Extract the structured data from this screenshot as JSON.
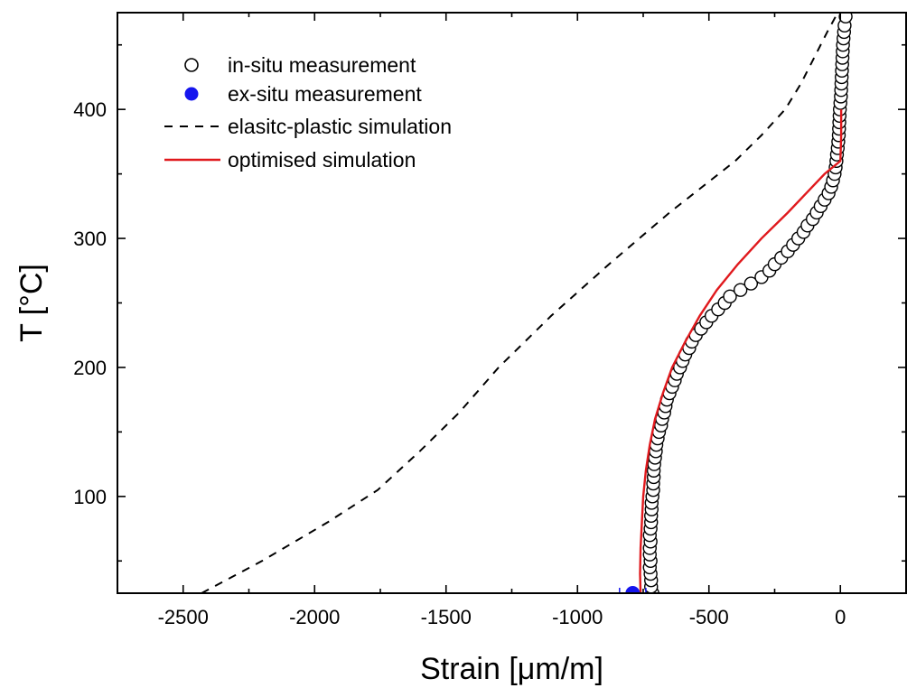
{
  "chart_data": {
    "type": "line",
    "title": "",
    "xlabel": "Strain [μm/m]",
    "ylabel": "T [°C]",
    "xlim": [
      -2750,
      250
    ],
    "ylim": [
      25,
      475
    ],
    "x_ticks": [
      -2500,
      -2000,
      -1500,
      -1000,
      -500,
      0
    ],
    "y_ticks": [
      100,
      200,
      300,
      400
    ],
    "grid": false,
    "legend_position": "top-left",
    "series": [
      {
        "name": "in-situ measurement",
        "style": "open-circle",
        "color": "#000000",
        "points": [
          [
            -715,
            25
          ],
          [
            -720,
            30
          ],
          [
            -720,
            35
          ],
          [
            -722,
            40
          ],
          [
            -725,
            45
          ],
          [
            -722,
            50
          ],
          [
            -725,
            55
          ],
          [
            -725,
            60
          ],
          [
            -722,
            65
          ],
          [
            -725,
            70
          ],
          [
            -722,
            75
          ],
          [
            -720,
            80
          ],
          [
            -720,
            85
          ],
          [
            -718,
            90
          ],
          [
            -718,
            95
          ],
          [
            -715,
            100
          ],
          [
            -712,
            105
          ],
          [
            -712,
            110
          ],
          [
            -710,
            115
          ],
          [
            -710,
            120
          ],
          [
            -708,
            125
          ],
          [
            -705,
            130
          ],
          [
            -702,
            135
          ],
          [
            -700,
            140
          ],
          [
            -695,
            145
          ],
          [
            -690,
            150
          ],
          [
            -682,
            155
          ],
          [
            -678,
            160
          ],
          [
            -670,
            165
          ],
          [
            -665,
            170
          ],
          [
            -660,
            175
          ],
          [
            -650,
            180
          ],
          [
            -640,
            185
          ],
          [
            -630,
            190
          ],
          [
            -622,
            195
          ],
          [
            -610,
            200
          ],
          [
            -600,
            205
          ],
          [
            -590,
            210
          ],
          [
            -575,
            215
          ],
          [
            -565,
            220
          ],
          [
            -550,
            225
          ],
          [
            -530,
            230
          ],
          [
            -510,
            235
          ],
          [
            -490,
            240
          ],
          [
            -465,
            245
          ],
          [
            -440,
            250
          ],
          [
            -420,
            255
          ],
          [
            -380,
            260
          ],
          [
            -340,
            265
          ],
          [
            -300,
            270
          ],
          [
            -270,
            275
          ],
          [
            -250,
            280
          ],
          [
            -225,
            285
          ],
          [
            -200,
            290
          ],
          [
            -180,
            295
          ],
          [
            -160,
            300
          ],
          [
            -140,
            305
          ],
          [
            -125,
            310
          ],
          [
            -105,
            315
          ],
          [
            -90,
            320
          ],
          [
            -75,
            325
          ],
          [
            -60,
            330
          ],
          [
            -45,
            335
          ],
          [
            -35,
            340
          ],
          [
            -28,
            345
          ],
          [
            -22,
            350
          ],
          [
            -18,
            355
          ],
          [
            -15,
            360
          ],
          [
            -13,
            365
          ],
          [
            -10,
            370
          ],
          [
            -8,
            375
          ],
          [
            -6,
            380
          ],
          [
            -5,
            385
          ],
          [
            -4,
            390
          ],
          [
            -3,
            395
          ],
          [
            -2,
            400
          ],
          [
            0,
            405
          ],
          [
            2,
            410
          ],
          [
            3,
            415
          ],
          [
            4,
            420
          ],
          [
            5,
            425
          ],
          [
            6,
            430
          ],
          [
            7,
            435
          ],
          [
            8,
            440
          ],
          [
            9,
            445
          ],
          [
            10,
            450
          ],
          [
            12,
            455
          ],
          [
            14,
            460
          ],
          [
            16,
            465
          ],
          [
            20,
            472
          ]
        ]
      },
      {
        "name": "ex-situ measurement",
        "style": "filled-circle",
        "color": "#1515ee",
        "points": [
          [
            -790,
            25
          ]
        ],
        "x_error": 50
      },
      {
        "name": "elasitc-plastic simulation",
        "style": "dashed",
        "color": "#000000",
        "points": [
          [
            -2430,
            25
          ],
          [
            -2200,
            50
          ],
          [
            -1950,
            80
          ],
          [
            -1760,
            105
          ],
          [
            -1600,
            135
          ],
          [
            -1450,
            165
          ],
          [
            -1300,
            200
          ],
          [
            -1100,
            240
          ],
          [
            -880,
            280
          ],
          [
            -650,
            320
          ],
          [
            -400,
            360
          ],
          [
            -300,
            380
          ],
          [
            -210,
            400
          ],
          [
            -150,
            420
          ],
          [
            -100,
            440
          ],
          [
            -50,
            460
          ],
          [
            -10,
            475
          ]
        ]
      },
      {
        "name": "optimised simulation",
        "style": "solid",
        "color": "#e0191d",
        "points": [
          [
            -760,
            25
          ],
          [
            -762,
            40
          ],
          [
            -760,
            60
          ],
          [
            -755,
            80
          ],
          [
            -750,
            100
          ],
          [
            -740,
            120
          ],
          [
            -725,
            140
          ],
          [
            -705,
            160
          ],
          [
            -675,
            180
          ],
          [
            -640,
            200
          ],
          [
            -590,
            220
          ],
          [
            -535,
            240
          ],
          [
            -470,
            260
          ],
          [
            -390,
            280
          ],
          [
            -300,
            300
          ],
          [
            -200,
            320
          ],
          [
            -130,
            335
          ],
          [
            -60,
            350
          ],
          [
            0,
            360
          ],
          [
            3,
            380
          ],
          [
            3,
            400
          ]
        ]
      }
    ]
  }
}
